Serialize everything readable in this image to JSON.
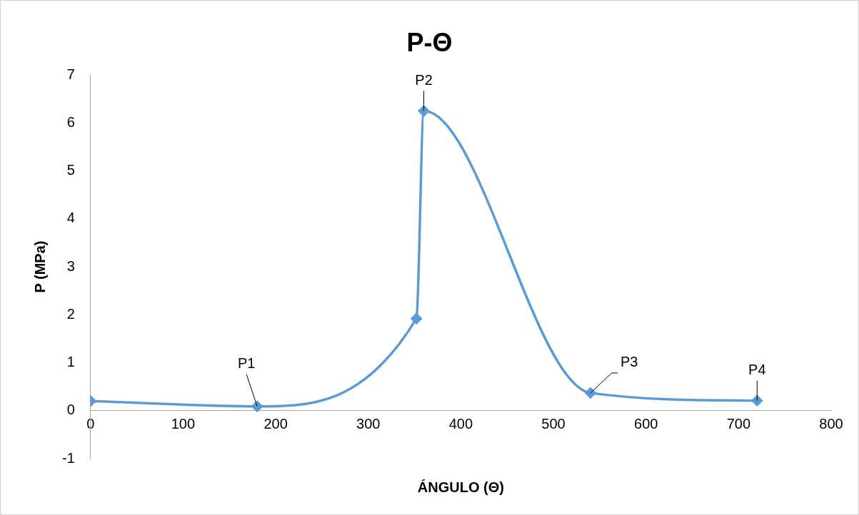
{
  "chart_data": {
    "type": "line",
    "title": "P-Θ",
    "xlabel": "ÁNGULO (Θ)",
    "ylabel": "P (MPa)",
    "x": [
      0,
      180,
      352,
      360,
      540,
      720
    ],
    "series": [
      {
        "color": "#5b9bd5",
        "values": [
          0.2,
          0.09,
          1.92,
          6.25,
          0.37,
          0.21
        ]
      }
    ],
    "xlim": [
      0,
      800
    ],
    "xticks": [
      0,
      100,
      200,
      300,
      400,
      500,
      600,
      700,
      800
    ],
    "ylim": [
      -1,
      7
    ],
    "yticks": [
      -1,
      0,
      1,
      2,
      3,
      4,
      5,
      6,
      7
    ],
    "annotations": [
      {
        "text": "P1",
        "x": 180,
        "y": 0.09
      },
      {
        "text": "P2",
        "x": 360,
        "y": 6.25
      },
      {
        "text": "P3",
        "x": 540,
        "y": 0.37
      },
      {
        "text": "P4",
        "x": 720,
        "y": 0.21
      }
    ],
    "grid": false,
    "legend": false,
    "marker": "diamond",
    "line_style": "solid"
  }
}
